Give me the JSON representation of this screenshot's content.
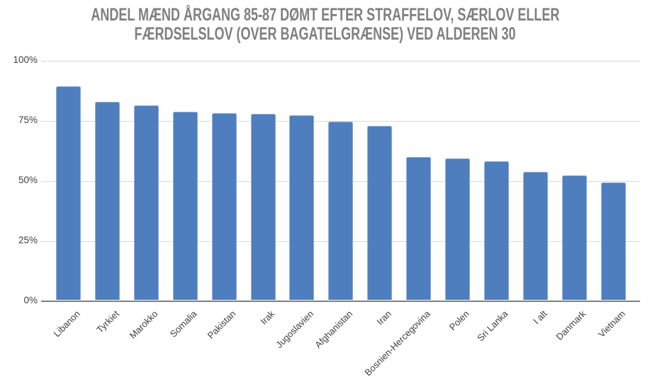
{
  "chart_data": {
    "type": "bar",
    "title": "ANDEL MÆND ÅRGANG 85-87 DØMT EFTER STRAFFELOV, SÆRLOV ELLER FÆRDSELSLOV (OVER BAGATELGRÆNSE) VED ALDEREN 30",
    "title_lines": [
      "ANDEL MÆND ÅRGANG 85-87 DØMT EFTER STRAFFELOV, SÆRLOV ELLER",
      "FÆRDSELSLOV (OVER BAGATELGRÆNSE) VED ALDEREN 30"
    ],
    "categories": [
      "Libanon",
      "Tyrkiet",
      "Marokko",
      "Somalia",
      "Pakistan",
      "Irak",
      "Jugoslavien",
      "Afghanistan",
      "Iran",
      "Bosnien-Hercegovina",
      "Polen",
      "Sri Lanka",
      "I alt",
      "Danmark",
      "Vietnam"
    ],
    "values": [
      89,
      82.5,
      81,
      78.5,
      78,
      77.5,
      77,
      74.5,
      72.5,
      59.5,
      59,
      58,
      53.5,
      52,
      49
    ],
    "unit": "%",
    "xlabel": "",
    "ylabel": "",
    "ylim": [
      0,
      100
    ],
    "yticks": [
      0,
      25,
      50,
      75,
      100
    ],
    "ytick_labels": [
      "0%",
      "25%",
      "50%",
      "75%",
      "100%"
    ],
    "grid": true,
    "legend": false,
    "colors": {
      "bar_fill": "#4E7EBE",
      "bar_border": "#8FAFD8",
      "gridline": "#D9D9D9",
      "baseline": "#7F7F7F",
      "title_text": "#7F7F7F",
      "axis_text": "#404040"
    }
  }
}
